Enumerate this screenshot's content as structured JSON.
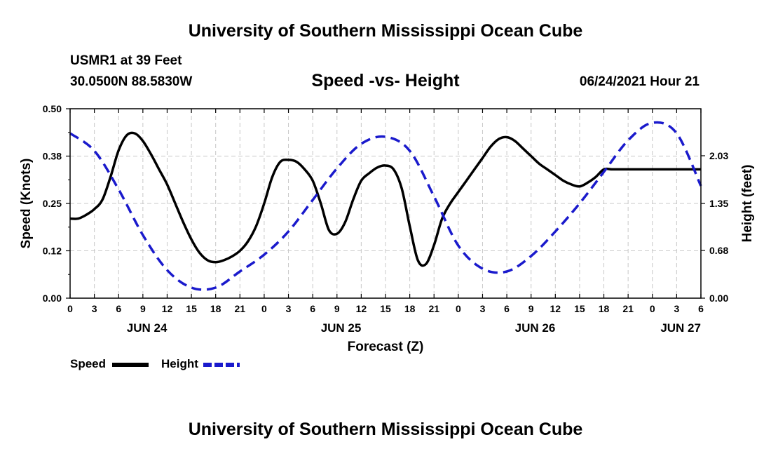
{
  "header": {
    "title": "University of Southern Mississippi Ocean Cube",
    "station": "USMR1 at 39 Feet",
    "coords": "30.0500N  88.5830W",
    "subtitle": "Speed -vs- Height",
    "datetime": "06/24/2021 Hour 21"
  },
  "footer": {
    "title": "University of Southern Mississippi Ocean Cube"
  },
  "legend": {
    "speed": "Speed",
    "height": "Height"
  },
  "colors": {
    "speed": "#000000",
    "height": "#1a1acc",
    "grid": "#c8c8c8"
  },
  "chart_data": {
    "type": "line",
    "title": "Speed -vs- Height",
    "xlabel": "Forecast (Z)",
    "ylabel": "Speed (Knots)",
    "y2label": "Height (feet)",
    "grid": true,
    "xlim": [
      0,
      78
    ],
    "ylim": [
      0,
      0.5
    ],
    "y2lim": [
      0,
      2.7
    ],
    "yticks": [
      "0.00",
      "0.12",
      "0.25",
      "0.38",
      "0.50"
    ],
    "y2ticks": [
      "0.00",
      "0.68",
      "1.35",
      "2.03"
    ],
    "xtick_labels": [
      "0",
      "3",
      "6",
      "9",
      "12",
      "15",
      "18",
      "21",
      "0",
      "3",
      "6",
      "9",
      "12",
      "15",
      "18",
      "21",
      "0",
      "3",
      "6",
      "9",
      "12",
      "15",
      "18",
      "21",
      "0",
      "3",
      "6"
    ],
    "date_labels": [
      {
        "label": "JUN 24",
        "hour": 9.5
      },
      {
        "label": "JUN 25",
        "hour": 33.5
      },
      {
        "label": "JUN 26",
        "hour": 57.5
      },
      {
        "label": "JUN 27",
        "hour": 75.5
      }
    ],
    "x": [
      0,
      1,
      2,
      3,
      4,
      5,
      6,
      7,
      8,
      9,
      10,
      11,
      12,
      13,
      14,
      15,
      16,
      17,
      18,
      19,
      20,
      21,
      22,
      23,
      24,
      25,
      26,
      27,
      28,
      29,
      30,
      31,
      32,
      33,
      34,
      35,
      36,
      37,
      38,
      39,
      40,
      41,
      42,
      43,
      44,
      45,
      46,
      47,
      48,
      49,
      50,
      51,
      52,
      53,
      54,
      55,
      56,
      57,
      58,
      59,
      60,
      61,
      62,
      63,
      64,
      65,
      66,
      67,
      68,
      69,
      70,
      71,
      72,
      73,
      74,
      75,
      76,
      77,
      78
    ],
    "series": [
      {
        "name": "Speed",
        "axis": "left",
        "style": "solid",
        "values": [
          0.21,
          0.21,
          0.22,
          0.235,
          0.26,
          0.32,
          0.39,
          0.43,
          0.435,
          0.415,
          0.38,
          0.34,
          0.3,
          0.25,
          0.2,
          0.155,
          0.12,
          0.1,
          0.095,
          0.1,
          0.11,
          0.125,
          0.15,
          0.19,
          0.25,
          0.32,
          0.36,
          0.365,
          0.36,
          0.34,
          0.31,
          0.25,
          0.18,
          0.17,
          0.2,
          0.26,
          0.31,
          0.33,
          0.345,
          0.35,
          0.34,
          0.29,
          0.19,
          0.1,
          0.09,
          0.14,
          0.21,
          0.25,
          0.28,
          0.31,
          0.34,
          0.37,
          0.4,
          0.42,
          0.425,
          0.415,
          0.395,
          0.375,
          0.355,
          0.34,
          0.325,
          0.31,
          0.3,
          0.295,
          0.305,
          0.32,
          0.34,
          0.34,
          0.34,
          0.34,
          0.34,
          0.34,
          0.34,
          0.34,
          0.34,
          0.34,
          0.34,
          0.34,
          0.34
        ],
        "max_hour": 78
      },
      {
        "name": "Height",
        "axis": "right",
        "style": "dashed",
        "x": [
          0,
          3,
          6,
          9,
          12,
          15,
          18,
          21,
          24,
          27,
          30,
          33,
          36,
          39,
          42,
          45,
          48,
          51,
          54,
          57,
          60,
          63,
          66,
          69,
          72,
          75,
          78
        ],
        "values": [
          2.35,
          2.1,
          1.55,
          0.9,
          0.4,
          0.15,
          0.15,
          0.38,
          0.62,
          0.95,
          1.4,
          1.85,
          2.2,
          2.3,
          2.1,
          1.45,
          0.75,
          0.42,
          0.38,
          0.6,
          0.95,
          1.35,
          1.8,
          2.25,
          2.5,
          2.35,
          1.6
        ]
      }
    ]
  }
}
